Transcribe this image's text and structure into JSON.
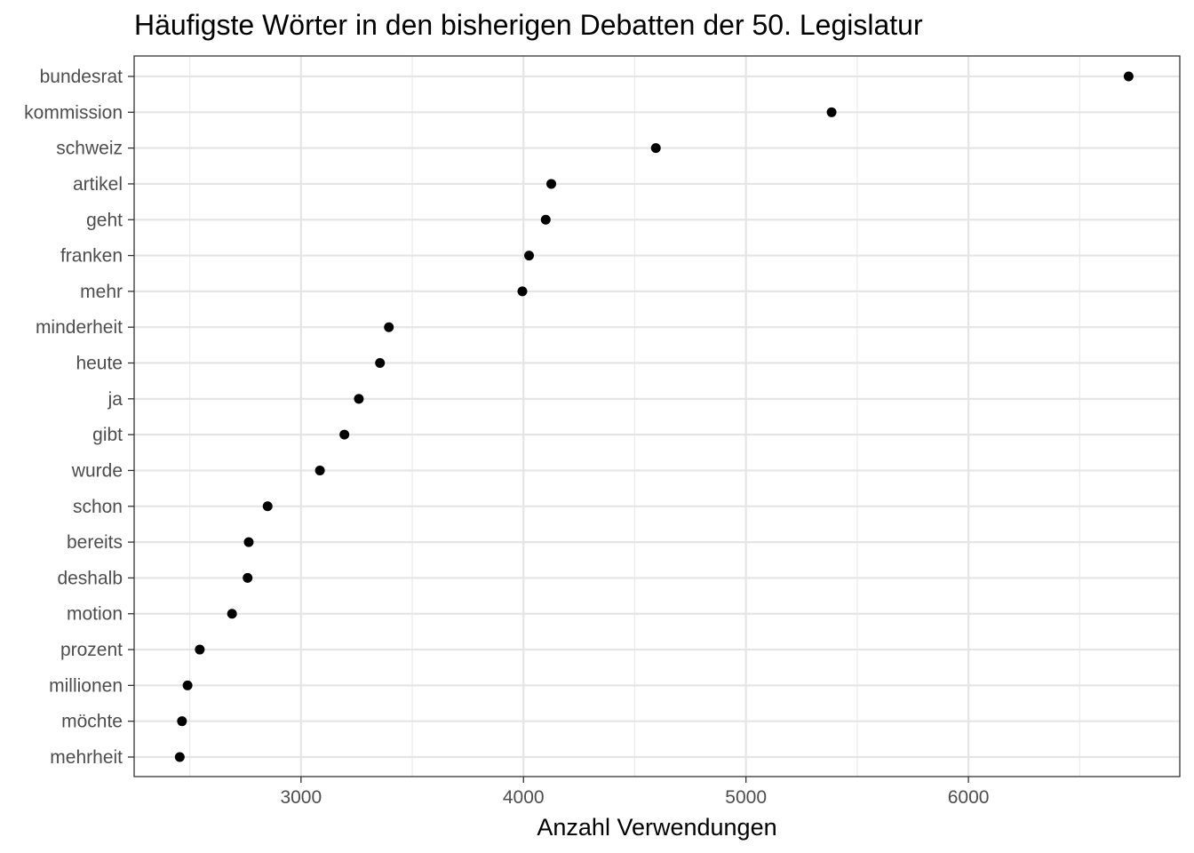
{
  "chart_data": {
    "type": "scatter",
    "title": "Häufigste Wörter in den bisherigen Debatten der 50. Legislatur",
    "xlabel": "Anzahl Verwendungen",
    "ylabel": "",
    "xlim": [
      2250,
      6950
    ],
    "x_ticks": [
      3000,
      4000,
      5000,
      6000
    ],
    "x_minor_ticks": [
      2500,
      3500,
      4500,
      5500,
      6500
    ],
    "grid": true,
    "theme": "bw",
    "point_color": "#000000",
    "categories": [
      "bundesrat",
      "kommission",
      "schweiz",
      "artikel",
      "geht",
      "franken",
      "mehr",
      "minderheit",
      "heute",
      "ja",
      "gibt",
      "wurde",
      "schon",
      "bereits",
      "deshalb",
      "motion",
      "prozent",
      "millionen",
      "möchte",
      "mehrheit"
    ],
    "values": [
      6720,
      5385,
      4595,
      4125,
      4100,
      4025,
      3995,
      3395,
      3355,
      3260,
      3195,
      3085,
      2850,
      2765,
      2760,
      2690,
      2545,
      2490,
      2465,
      2455
    ]
  }
}
